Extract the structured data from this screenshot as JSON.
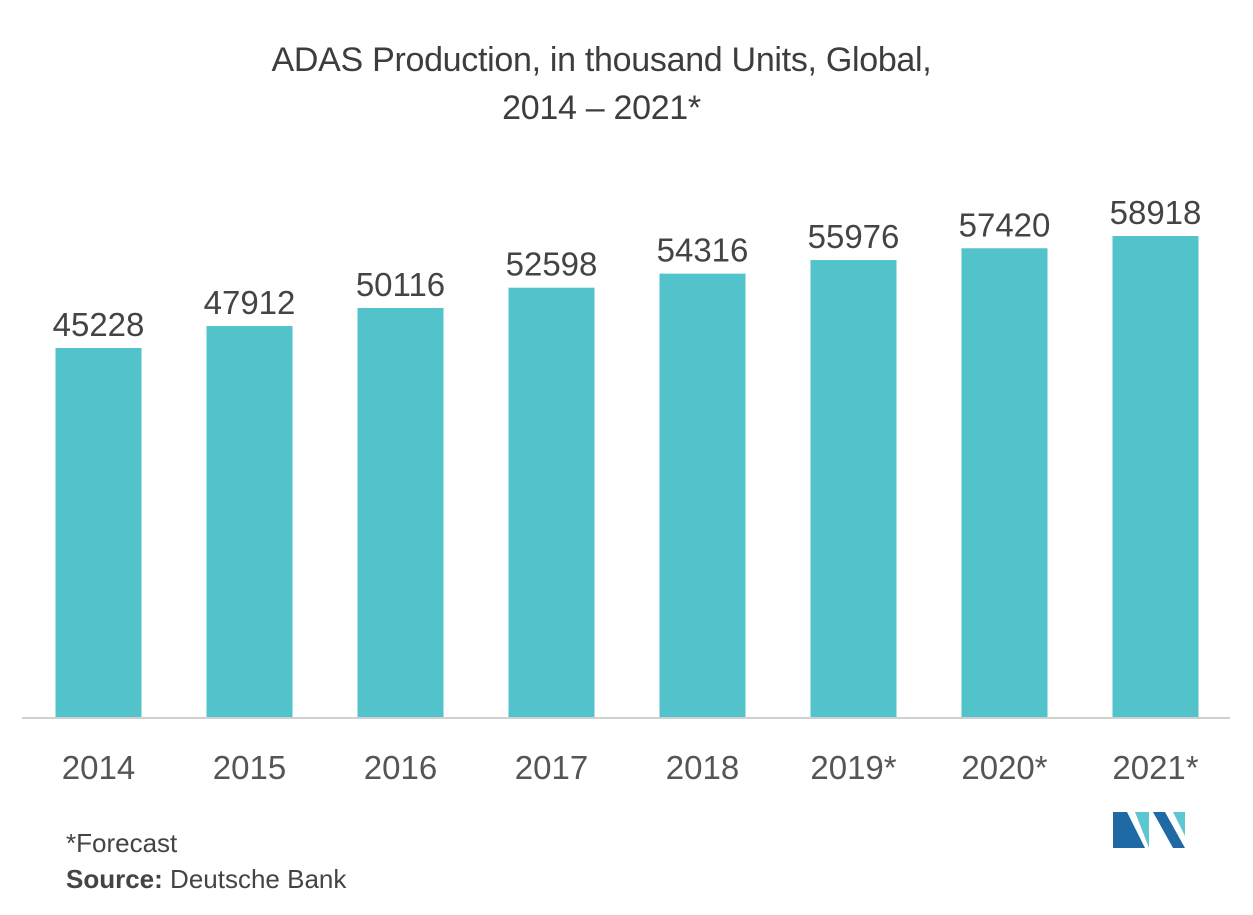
{
  "colors": {
    "bar": "#52c3ca",
    "axis": "#d0d0d0",
    "logo_dark": "#1f6aa5",
    "logo_light": "#5ec6d0"
  },
  "footnote": "*Forecast",
  "source": {
    "label": "Source:",
    "text": "Deutsche Bank"
  },
  "logo": {
    "icon": "mordor-intelligence-logo-icon"
  },
  "chart_data": {
    "type": "bar",
    "title": [
      "ADAS Production, in thousand Units, Global,",
      "2014 – 2021*"
    ],
    "xlabel": "",
    "ylabel": "",
    "categories": [
      "2014",
      "2015",
      "2016",
      "2017",
      "2018",
      "2019*",
      "2020*",
      "2021*"
    ],
    "values": [
      45228,
      47912,
      50116,
      52598,
      54316,
      55976,
      57420,
      58918
    ],
    "data_labels": [
      "45228",
      "47912",
      "50116",
      "52598",
      "54316",
      "55976",
      "57420",
      "58918"
    ],
    "ylim": [
      0,
      58918
    ],
    "grid": false,
    "legend": "none"
  }
}
